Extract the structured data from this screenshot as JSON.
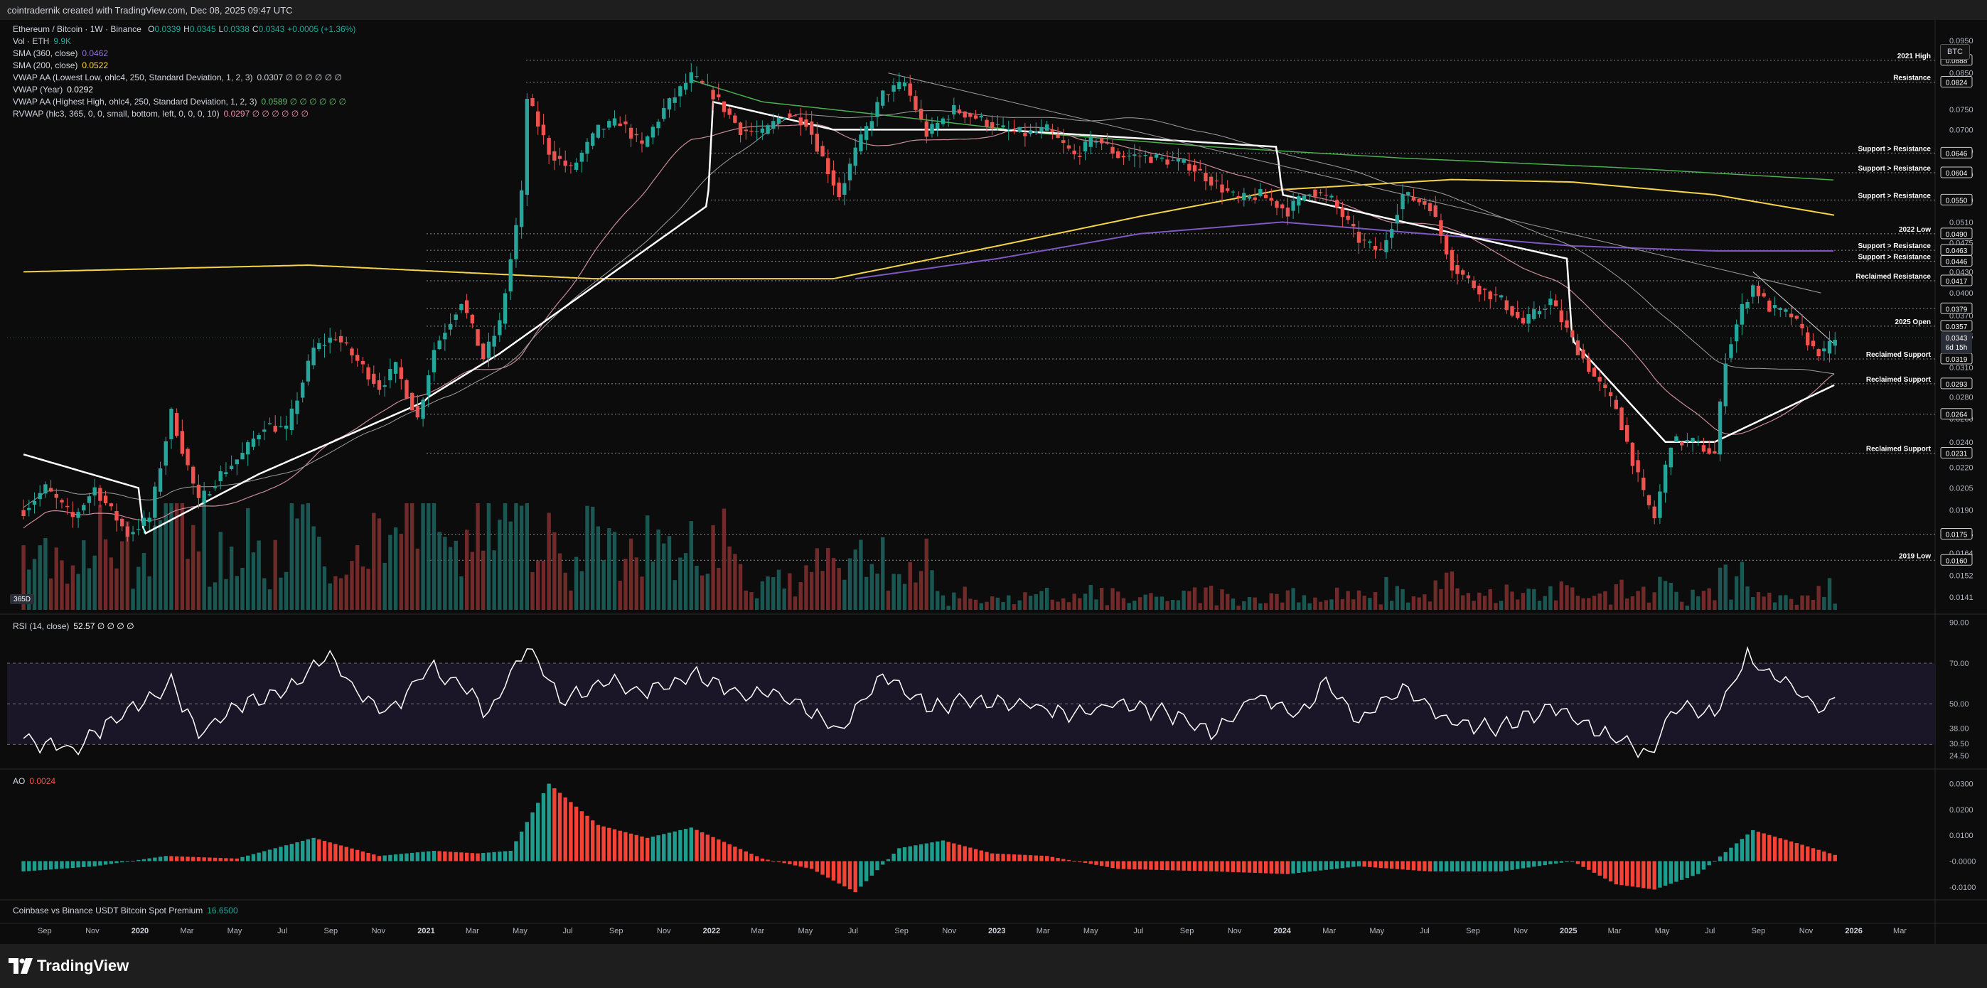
{
  "header": {
    "creator_line": "cointradernik created with TradingView.com, Dec 08, 2025 09:47 UTC"
  },
  "footer": {
    "brand": "TradingView"
  },
  "currency_button": "BTC",
  "legend": {
    "symbol": "Ethereum / Bitcoin · 1W · Binance",
    "ohlc": {
      "o_label": "O",
      "o": "0.0339",
      "h_label": "H",
      "h": "0.0345",
      "l_label": "L",
      "l": "0.0338",
      "c_label": "C",
      "c": "0.0343",
      "change": "+0.0005 (+1.36%)"
    },
    "lines": [
      {
        "label": "Vol · ETH",
        "value": "9.9K",
        "color": "#26a69a"
      },
      {
        "label": "SMA (360, close)",
        "value": "0.0462",
        "color": "#9575cd"
      },
      {
        "label": "SMA (200, close)",
        "value": "0.0522",
        "color": "#ffd740"
      },
      {
        "label": "VWAP AA (Lowest Low, ohlc4, 250, Standard Deviation, 1, 2, 3)",
        "value": "0.0307 ∅ ∅ ∅ ∅ ∅ ∅",
        "color": "#d1d4dc"
      },
      {
        "label": "VWAP (Year)",
        "value": "0.0292",
        "color": "#ffffff"
      },
      {
        "label": "VWAP AA (Highest High, ohlc4, 250, Standard Deviation, 1, 2, 3)",
        "value": "0.0589 ∅ ∅ ∅ ∅ ∅ ∅",
        "color": "#66bb6a"
      },
      {
        "label": "RVWAP (hlc3, 365, 0, 0, small, bottom, left, 0, 0, 0, 10)",
        "value": "0.0297 ∅ ∅ ∅ ∅ ∅ ∅",
        "color": "#f48fb1"
      }
    ],
    "rsi": {
      "label": "RSI (14, close)",
      "value": "52.57 ∅ ∅ ∅ ∅"
    },
    "ao": {
      "label": "AO",
      "value": "0.0024"
    },
    "premium": {
      "label": "Coinbase vs Binance USDT Bitcoin Spot Premium",
      "value": "16.6500"
    }
  },
  "vol_badge": "365D",
  "chart_data": {
    "type": "line",
    "title": "Ethereum / Bitcoin · 1W · Binance",
    "xlabel": "",
    "ylabel": "",
    "ylim": [
      0.0135,
      0.1
    ],
    "y_scale": "log",
    "grid": false,
    "x_ticks": [
      {
        "label": "Sep",
        "date": "2019-09-01"
      },
      {
        "label": "Nov",
        "date": "2019-11-01"
      },
      {
        "label": "2020",
        "date": "2020-01-01",
        "year": true
      },
      {
        "label": "Mar",
        "date": "2020-03-01"
      },
      {
        "label": "May",
        "date": "2020-05-01"
      },
      {
        "label": "Jul",
        "date": "2020-07-01"
      },
      {
        "label": "Sep",
        "date": "2020-09-01"
      },
      {
        "label": "Nov",
        "date": "2020-11-01"
      },
      {
        "label": "2021",
        "date": "2021-01-01",
        "year": true
      },
      {
        "label": "Mar",
        "date": "2021-03-01"
      },
      {
        "label": "May",
        "date": "2021-05-01"
      },
      {
        "label": "Jul",
        "date": "2021-07-01"
      },
      {
        "label": "Sep",
        "date": "2021-09-01"
      },
      {
        "label": "Nov",
        "date": "2021-11-01"
      },
      {
        "label": "2022",
        "date": "2022-01-01",
        "year": true
      },
      {
        "label": "Mar",
        "date": "2022-03-01"
      },
      {
        "label": "May",
        "date": "2022-05-01"
      },
      {
        "label": "Jul",
        "date": "2022-07-01"
      },
      {
        "label": "Sep",
        "date": "2022-09-01"
      },
      {
        "label": "Nov",
        "date": "2022-11-01"
      },
      {
        "label": "2023",
        "date": "2023-01-01",
        "year": true
      },
      {
        "label": "Mar",
        "date": "2023-03-01"
      },
      {
        "label": "May",
        "date": "2023-05-01"
      },
      {
        "label": "Jul",
        "date": "2023-07-01"
      },
      {
        "label": "Sep",
        "date": "2023-09-01"
      },
      {
        "label": "Nov",
        "date": "2023-11-01"
      },
      {
        "label": "2024",
        "date": "2024-01-01",
        "year": true
      },
      {
        "label": "Mar",
        "date": "2024-03-01"
      },
      {
        "label": "May",
        "date": "2024-05-01"
      },
      {
        "label": "Jul",
        "date": "2024-07-01"
      },
      {
        "label": "Sep",
        "date": "2024-09-01"
      },
      {
        "label": "Nov",
        "date": "2024-11-01"
      },
      {
        "label": "2025",
        "date": "2025-01-01",
        "year": true
      },
      {
        "label": "Mar",
        "date": "2025-03-01"
      },
      {
        "label": "May",
        "date": "2025-05-01"
      },
      {
        "label": "Jul",
        "date": "2025-07-01"
      },
      {
        "label": "Sep",
        "date": "2025-09-01"
      },
      {
        "label": "Nov",
        "date": "2025-11-01"
      },
      {
        "label": "2026",
        "date": "2026-01-01",
        "year": true
      },
      {
        "label": "Mar",
        "date": "2026-03-01"
      }
    ],
    "price_ticks": [
      "0.0950",
      "0.0850",
      "0.0750",
      "0.0700",
      "0.0650",
      "0.0600",
      "0.0550",
      "0.0510",
      "0.0475",
      "0.0430",
      "0.0400",
      "0.0370",
      "0.0345",
      "0.0310",
      "0.0280",
      "0.0260",
      "0.0240",
      "0.0220",
      "0.0205",
      "0.0190",
      "0.0175",
      "0.0164",
      "0.0152",
      "0.0141"
    ],
    "levels": [
      {
        "label": "2021 High",
        "value": 0.0888,
        "tag": "0.0888"
      },
      {
        "label": "Resistance",
        "value": 0.0824,
        "tag": "0.0824"
      },
      {
        "label": "Support > Resistance",
        "value": 0.0646,
        "tag": "0.0646"
      },
      {
        "label": "Support > Resistance",
        "value": 0.0604,
        "tag": "0.0604"
      },
      {
        "label": "Support > Resistance",
        "value": 0.055,
        "tag": "0.0550"
      },
      {
        "label": "2022 Low",
        "value": 0.049,
        "tag": "0.0490"
      },
      {
        "label": "Support > Resistance",
        "value": 0.0463,
        "tag": "0.0463"
      },
      {
        "label": "Support > Resistance",
        "value": 0.0446,
        "tag": "0.0446"
      },
      {
        "label": "Reclaimed Resistance",
        "value": 0.0417,
        "tag": "0.0417"
      },
      {
        "label": "",
        "value": 0.0379,
        "tag": "0.0379"
      },
      {
        "label": "2025 Open",
        "value": 0.0357,
        "tag": "0.0357"
      },
      {
        "label": "Reclaimed Support",
        "value": 0.0319,
        "tag": "0.0319"
      },
      {
        "label": "Reclaimed Support",
        "value": 0.0293,
        "tag": "0.0293"
      },
      {
        "label": "",
        "value": 0.0264,
        "tag": "0.0264"
      },
      {
        "label": "Reclaimed Support",
        "value": 0.0231,
        "tag": "0.0231"
      },
      {
        "label": "",
        "value": 0.0175,
        "tag": "0.0175"
      },
      {
        "label": "2019 Low",
        "value": 0.016,
        "tag": "0.0160"
      }
    ],
    "last_price": {
      "value": 0.0343,
      "tag": "0.0343",
      "countdown": "6d 15h"
    },
    "price_path": [
      [
        "2019-08-05",
        0.019
      ],
      [
        "2019-09-02",
        0.0205
      ],
      [
        "2019-10-07",
        0.0185
      ],
      [
        "2019-11-04",
        0.0205
      ],
      [
        "2019-12-16",
        0.0175
      ],
      [
        "2020-01-13",
        0.0185
      ],
      [
        "2020-02-10",
        0.0265
      ],
      [
        "2020-03-16",
        0.0195
      ],
      [
        "2020-04-13",
        0.0215
      ],
      [
        "2020-05-11",
        0.023
      ],
      [
        "2020-06-08",
        0.0255
      ],
      [
        "2020-07-06",
        0.025
      ],
      [
        "2020-08-10",
        0.033
      ],
      [
        "2020-09-07",
        0.0345
      ],
      [
        "2020-10-12",
        0.031
      ],
      [
        "2020-11-02",
        0.029
      ],
      [
        "2020-11-23",
        0.031
      ],
      [
        "2020-12-21",
        0.026
      ],
      [
        "2021-01-11",
        0.033
      ],
      [
        "2021-02-15",
        0.039
      ],
      [
        "2021-03-15",
        0.032
      ],
      [
        "2021-04-05",
        0.036
      ],
      [
        "2021-05-03",
        0.056
      ],
      [
        "2021-05-10",
        0.078
      ],
      [
        "2021-06-07",
        0.065
      ],
      [
        "2021-07-05",
        0.061
      ],
      [
        "2021-08-09",
        0.07
      ],
      [
        "2021-09-06",
        0.072
      ],
      [
        "2021-10-04",
        0.066
      ],
      [
        "2021-11-01",
        0.075
      ],
      [
        "2021-12-06",
        0.084
      ],
      [
        "2022-01-03",
        0.079
      ],
      [
        "2022-02-07",
        0.07
      ],
      [
        "2022-03-07",
        0.069
      ],
      [
        "2022-04-04",
        0.074
      ],
      [
        "2022-05-02",
        0.072
      ],
      [
        "2022-06-13",
        0.056
      ],
      [
        "2022-07-04",
        0.065
      ],
      [
        "2022-08-08",
        0.079
      ],
      [
        "2022-09-05",
        0.082
      ],
      [
        "2022-10-03",
        0.069
      ],
      [
        "2022-11-07",
        0.075
      ],
      [
        "2022-12-05",
        0.073
      ],
      [
        "2023-01-09",
        0.07
      ],
      [
        "2023-02-06",
        0.069
      ],
      [
        "2023-03-06",
        0.07
      ],
      [
        "2023-04-10",
        0.064
      ],
      [
        "2023-05-08",
        0.068
      ],
      [
        "2023-06-05",
        0.064
      ],
      [
        "2023-07-03",
        0.064
      ],
      [
        "2023-08-07",
        0.063
      ],
      [
        "2023-09-04",
        0.062
      ],
      [
        "2023-10-09",
        0.058
      ],
      [
        "2023-11-06",
        0.055
      ],
      [
        "2023-12-04",
        0.056
      ],
      [
        "2024-01-08",
        0.053
      ],
      [
        "2024-02-05",
        0.057
      ],
      [
        "2024-03-04",
        0.055
      ],
      [
        "2024-04-08",
        0.048
      ],
      [
        "2024-05-06",
        0.046
      ],
      [
        "2024-06-03",
        0.056
      ],
      [
        "2024-07-08",
        0.054
      ],
      [
        "2024-08-05",
        0.044
      ],
      [
        "2024-09-02",
        0.041
      ],
      [
        "2024-10-07",
        0.039
      ],
      [
        "2024-11-04",
        0.036
      ],
      [
        "2024-12-09",
        0.039
      ],
      [
        "2025-01-06",
        0.034
      ],
      [
        "2025-02-03",
        0.03
      ],
      [
        "2025-03-03",
        0.027
      ],
      [
        "2025-04-07",
        0.02
      ],
      [
        "2025-04-21",
        0.0185
      ],
      [
        "2025-05-12",
        0.024
      ],
      [
        "2025-06-09",
        0.024
      ],
      [
        "2025-07-07",
        0.023
      ],
      [
        "2025-07-21",
        0.032
      ],
      [
        "2025-08-11",
        0.038
      ],
      [
        "2025-08-25",
        0.041
      ],
      [
        "2025-09-15",
        0.038
      ],
      [
        "2025-10-13",
        0.037
      ],
      [
        "2025-11-10",
        0.033
      ],
      [
        "2025-11-24",
        0.0325
      ],
      [
        "2025-12-08",
        0.0343
      ]
    ],
    "sma200_path": [
      [
        "2019-08-05",
        0.043
      ],
      [
        "2020-08-03",
        0.044
      ],
      [
        "2021-08-02",
        0.042
      ],
      [
        "2022-06-06",
        0.042
      ],
      [
        "2023-01-02",
        0.047
      ],
      [
        "2023-07-03",
        0.052
      ],
      [
        "2024-01-01",
        0.057
      ],
      [
        "2024-08-05",
        0.059
      ],
      [
        "2025-01-06",
        0.0585
      ],
      [
        "2025-07-07",
        0.056
      ],
      [
        "2025-12-08",
        0.0522
      ]
    ],
    "sma360_path": [
      [
        "2022-07-04",
        0.042
      ],
      [
        "2023-01-02",
        0.045
      ],
      [
        "2023-07-03",
        0.049
      ],
      [
        "2024-01-01",
        0.051
      ],
      [
        "2024-07-01",
        0.049
      ],
      [
        "2025-01-06",
        0.047
      ],
      [
        "2025-07-07",
        0.0462
      ],
      [
        "2025-12-08",
        0.0462
      ]
    ],
    "vwap_high_path": [
      [
        "2021-12-06",
        0.083
      ],
      [
        "2022-03-07",
        0.077
      ],
      [
        "2022-09-05",
        0.073
      ],
      [
        "2023-03-06",
        0.069
      ],
      [
        "2023-10-02",
        0.066
      ],
      [
        "2024-06-03",
        0.0635
      ],
      [
        "2025-03-03",
        0.0615
      ],
      [
        "2025-12-08",
        0.0589
      ]
    ],
    "vwap_year_path": [
      [
        "2019-08-05",
        0.023
      ],
      [
        "2019-12-30",
        0.0205
      ],
      [
        "2020-01-06",
        0.0175
      ],
      [
        "2020-06-01",
        0.0215
      ],
      [
        "2020-12-28",
        0.0275
      ],
      [
        "2021-01-04",
        0.028
      ],
      [
        "2021-04-05",
        0.0325
      ],
      [
        "2021-12-27",
        0.054
      ],
      [
        "2022-01-03",
        0.077
      ],
      [
        "2022-06-06",
        0.07
      ],
      [
        "2022-12-26",
        0.07
      ],
      [
        "2023-01-02",
        0.07
      ],
      [
        "2023-12-25",
        0.066
      ],
      [
        "2024-01-01",
        0.056
      ],
      [
        "2024-12-30",
        0.045
      ],
      [
        "2025-01-06",
        0.034
      ],
      [
        "2025-05-05",
        0.024
      ],
      [
        "2025-07-07",
        0.024
      ],
      [
        "2025-12-08",
        0.0292
      ]
    ],
    "rsi": {
      "ylim": [
        20,
        92
      ],
      "band": [
        30,
        70
      ],
      "ticks": [
        "90.00",
        "70.00",
        "50.00",
        "38.00",
        "30.50",
        "24.50"
      ],
      "path": [
        [
          "2019-08-05",
          32
        ],
        [
          "2019-10-07",
          28
        ],
        [
          "2019-12-09",
          45
        ],
        [
          "2020-02-10",
          60
        ],
        [
          "2020-03-16",
          35
        ],
        [
          "2020-05-11",
          50
        ],
        [
          "2020-07-06",
          55
        ],
        [
          "2020-08-24",
          75
        ],
        [
          "2020-10-05",
          55
        ],
        [
          "2020-11-16",
          45
        ],
        [
          "2021-01-04",
          68
        ],
        [
          "2021-02-15",
          60
        ],
        [
          "2021-03-22",
          45
        ],
        [
          "2021-05-10",
          80
        ],
        [
          "2021-06-21",
          52
        ],
        [
          "2021-08-23",
          62
        ],
        [
          "2021-10-11",
          55
        ],
        [
          "2021-12-06",
          65
        ],
        [
          "2022-02-07",
          55
        ],
        [
          "2022-04-04",
          55
        ],
        [
          "2022-06-13",
          35
        ],
        [
          "2022-08-08",
          65
        ],
        [
          "2022-10-10",
          48
        ],
        [
          "2022-12-05",
          52
        ],
        [
          "2023-02-06",
          50
        ],
        [
          "2023-04-10",
          45
        ],
        [
          "2023-06-05",
          50
        ],
        [
          "2023-08-07",
          45
        ],
        [
          "2023-10-09",
          35
        ],
        [
          "2023-11-27",
          55
        ],
        [
          "2024-01-22",
          45
        ],
        [
          "2024-02-26",
          60
        ],
        [
          "2024-04-08",
          42
        ],
        [
          "2024-06-03",
          58
        ],
        [
          "2024-08-05",
          40
        ],
        [
          "2024-10-07",
          38
        ],
        [
          "2024-12-09",
          48
        ],
        [
          "2025-02-03",
          38
        ],
        [
          "2025-04-14",
          25
        ],
        [
          "2025-05-19",
          48
        ],
        [
          "2025-07-07",
          45
        ],
        [
          "2025-08-18",
          73
        ],
        [
          "2025-10-06",
          60
        ],
        [
          "2025-11-24",
          45
        ],
        [
          "2025-12-08",
          52.57
        ]
      ]
    },
    "ao": {
      "ylim": [
        -0.015,
        0.034
      ],
      "ticks": [
        "0.0300",
        "0.0200",
        "0.0100",
        "-0.0000",
        "-0.0100"
      ],
      "path": [
        [
          "2019-08-05",
          -0.004
        ],
        [
          "2019-11-04",
          -0.002
        ],
        [
          "2020-02-03",
          0.002
        ],
        [
          "2020-05-04",
          0.001
        ],
        [
          "2020-08-10",
          0.009
        ],
        [
          "2020-11-02",
          0.002
        ],
        [
          "2021-01-11",
          0.004
        ],
        [
          "2021-03-08",
          0.003
        ],
        [
          "2021-04-19",
          0.004
        ],
        [
          "2021-06-07",
          0.03
        ],
        [
          "2021-08-09",
          0.014
        ],
        [
          "2021-10-11",
          0.009
        ],
        [
          "2021-12-06",
          0.013
        ],
        [
          "2022-03-07",
          0.001
        ],
        [
          "2022-05-09",
          -0.003
        ],
        [
          "2022-07-04",
          -0.012
        ],
        [
          "2022-08-29",
          0.005
        ],
        [
          "2022-10-24",
          0.008
        ],
        [
          "2022-12-26",
          0.003
        ],
        [
          "2023-03-06",
          0.002
        ],
        [
          "2023-06-05",
          -0.003
        ],
        [
          "2023-10-09",
          -0.004
        ],
        [
          "2024-01-08",
          -0.005
        ],
        [
          "2024-04-08",
          -0.002
        ],
        [
          "2024-07-08",
          -0.004
        ],
        [
          "2024-10-07",
          -0.004
        ],
        [
          "2025-01-06",
          0.0
        ],
        [
          "2025-03-03",
          -0.009
        ],
        [
          "2025-04-21",
          -0.011
        ],
        [
          "2025-06-16",
          -0.005
        ],
        [
          "2025-08-25",
          0.012
        ],
        [
          "2025-10-20",
          0.007
        ],
        [
          "2025-12-08",
          0.0024
        ]
      ]
    }
  }
}
